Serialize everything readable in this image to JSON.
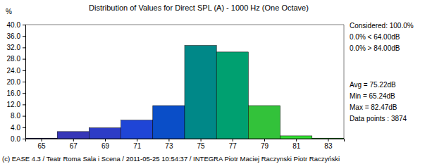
{
  "chart_data": {
    "type": "histogram",
    "title": "Distribution of Values for Direct SPL (A)  - 1000 Hz (One Octave)",
    "ylabel": "%",
    "bins": [
      64,
      66,
      68,
      70,
      72,
      74,
      76,
      78,
      80,
      82,
      84
    ],
    "values": [
      0.2,
      2.5,
      3.8,
      6.5,
      11.6,
      32.7,
      30.4,
      11.6,
      1.0,
      0.2
    ],
    "colors": [
      "#2a2a9c",
      "#3636b8",
      "#2d3cc6",
      "#1f45d6",
      "#0a4ec8",
      "#008888",
      "#00a070",
      "#33c23a",
      "#33e033",
      "#22ff22"
    ],
    "xlim": [
      64,
      84
    ],
    "xticks": [
      65,
      67,
      69,
      71,
      73,
      75,
      77,
      79,
      81,
      83
    ],
    "ylim": [
      0,
      40
    ],
    "yticks": [
      {
        "value": 0,
        "label": "0.0"
      },
      {
        "value": 4,
        "label": "4.0"
      },
      {
        "value": 8,
        "label": "8.0"
      },
      {
        "value": 12,
        "label": "12.0"
      },
      {
        "value": 16,
        "label": "16.0"
      },
      {
        "value": 20,
        "label": "20.0"
      },
      {
        "value": 24,
        "label": "24.0"
      },
      {
        "value": 28,
        "label": "28.0"
      },
      {
        "value": 32,
        "label": "32.0"
      },
      {
        "value": 36,
        "label": "36.0"
      },
      {
        "value": 40,
        "label": "40.0"
      }
    ],
    "grid": false,
    "annotations": [
      "Considered: 100.0%",
      "0.0% < 64.00dB",
      "0.0% > 84.00dB",
      "Avg = 75.22dB",
      "Min = 65.24dB",
      "Max = 82.47dB",
      "Data points : 3874"
    ],
    "caption": "(c) EASE 4.3  / Teatr Roma Sala i Scena / 2011-05-25 10:54:37 / INTEGRA Piotr Maciej Raczynski Piotr Raczyński"
  }
}
